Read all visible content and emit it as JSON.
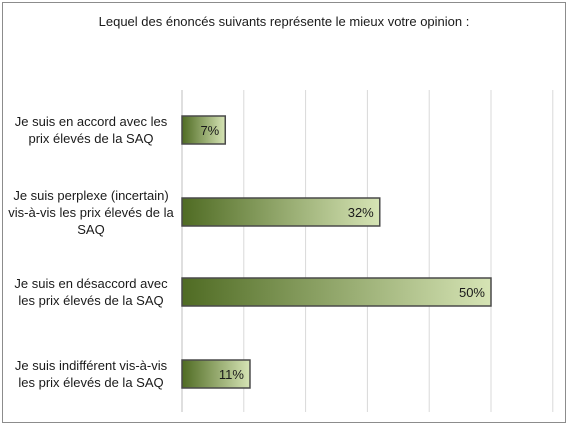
{
  "colors": {
    "bar_light": "#d6e4b5",
    "bar_dark": "#4f6b23"
  },
  "chart_data": {
    "type": "bar",
    "orientation": "horizontal",
    "title": "Lequel des énoncés suivants représente le mieux votre opinion :",
    "categories": [
      [
        "Je suis en accord avec les",
        "prix élevés de la SAQ"
      ],
      [
        "Je suis perplexe (incertain)",
        "vis-à-vis les prix élevés de la",
        "SAQ"
      ],
      [
        "Je suis en désaccord avec",
        "les prix élevés de la SAQ"
      ],
      [
        "Je suis indifférent vis-à-vis",
        "les prix élevés de la SAQ"
      ]
    ],
    "values": [
      7,
      32,
      50,
      11
    ],
    "value_labels": [
      "7%",
      "32%",
      "50%",
      "11%"
    ],
    "xlim": [
      0,
      60
    ],
    "grid": true,
    "legend": false
  }
}
